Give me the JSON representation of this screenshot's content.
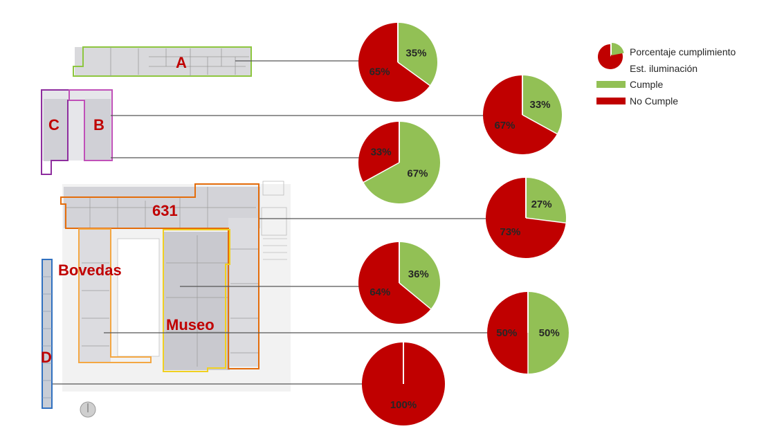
{
  "colors": {
    "cumple": "#92c055",
    "no_cumple": "#c00000",
    "leader": "#555555"
  },
  "legend": {
    "title_line1": "Porcentaje cumplimiento",
    "title_line2": "Est. iluminación",
    "cumple": "Cumple",
    "no_cumple": "No Cumple"
  },
  "zones": {
    "a": "A",
    "b": "B",
    "c": "C",
    "d": "D",
    "z631": "631",
    "bovedas": "Bovedas",
    "museo": "Museo"
  },
  "chart_data": {
    "type": "pie",
    "series_names": [
      "Cumple",
      "No Cumple"
    ],
    "pies": [
      {
        "zone": "A",
        "values": [
          35,
          65
        ],
        "labels": [
          "35%",
          "65%"
        ]
      },
      {
        "zone": "B",
        "values": [
          33,
          67
        ],
        "labels": [
          "33%",
          "67%"
        ]
      },
      {
        "zone": "C",
        "values": [
          67,
          33
        ],
        "labels": [
          "67%",
          "33%"
        ]
      },
      {
        "zone": "631",
        "values": [
          27,
          73
        ],
        "labels": [
          "27%",
          "73%"
        ]
      },
      {
        "zone": "Museo",
        "values": [
          36,
          64
        ],
        "labels": [
          "36%",
          "64%"
        ]
      },
      {
        "zone": "Bovedas",
        "values": [
          50,
          50
        ],
        "labels": [
          "50%",
          "50%"
        ]
      },
      {
        "zone": "D",
        "values": [
          0,
          100
        ],
        "labels": [
          "",
          "100%"
        ]
      }
    ]
  }
}
